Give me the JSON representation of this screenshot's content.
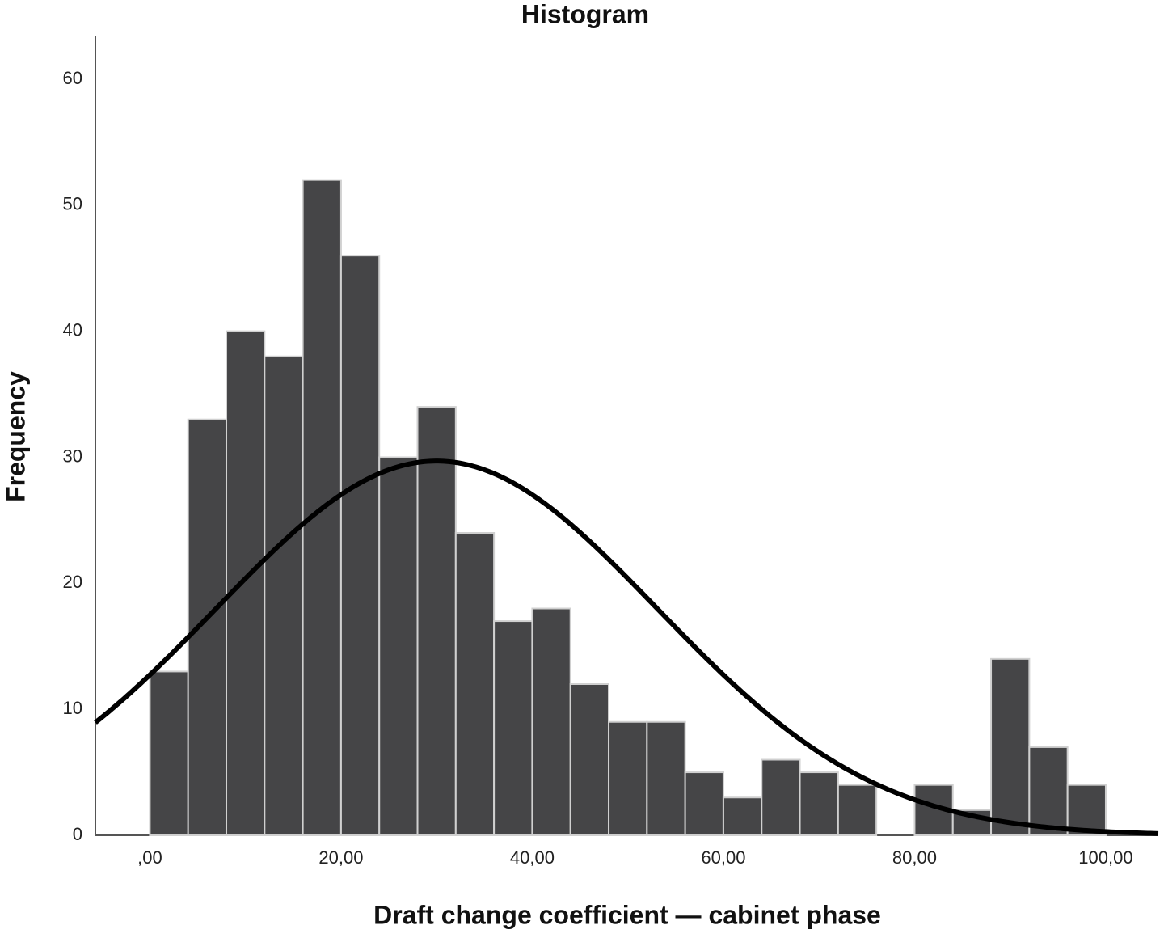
{
  "chart_data": {
    "type": "histogram",
    "title": "Histogram",
    "x_label": "Draft change coefficient — cabinet phase",
    "y_label": "Frequency",
    "bins": [
      0,
      4,
      8,
      12,
      16,
      20,
      24,
      28,
      32,
      36,
      40,
      44,
      48,
      52,
      56,
      60,
      64,
      68,
      72,
      76,
      80,
      84,
      88,
      92,
      96,
      100
    ],
    "values": [
      13,
      33,
      40,
      38,
      52,
      46,
      30,
      34,
      24,
      17,
      18,
      12,
      9,
      9,
      5,
      3,
      6,
      5,
      4,
      0,
      4,
      2,
      14,
      7,
      4
    ],
    "color": "#454547",
    "edge_color": "#d0d0d0",
    "normal_curve": {
      "mean": 30,
      "sd": 23.05,
      "color": "#000000"
    },
    "xlim": [
      -5.7,
      105.5
    ],
    "ylim": [
      0,
      63.4
    ],
    "xticks": [
      {
        "value": 0,
        "label": ",00"
      },
      {
        "value": 20,
        "label": "20,00"
      },
      {
        "value": 40,
        "label": "40,00"
      },
      {
        "value": 60,
        "label": "60,00"
      },
      {
        "value": 80,
        "label": "80,00"
      },
      {
        "value": 100,
        "label": "100,00"
      }
    ],
    "yticks": [
      0,
      10,
      20,
      30,
      40,
      50,
      60
    ],
    "grid": false
  }
}
